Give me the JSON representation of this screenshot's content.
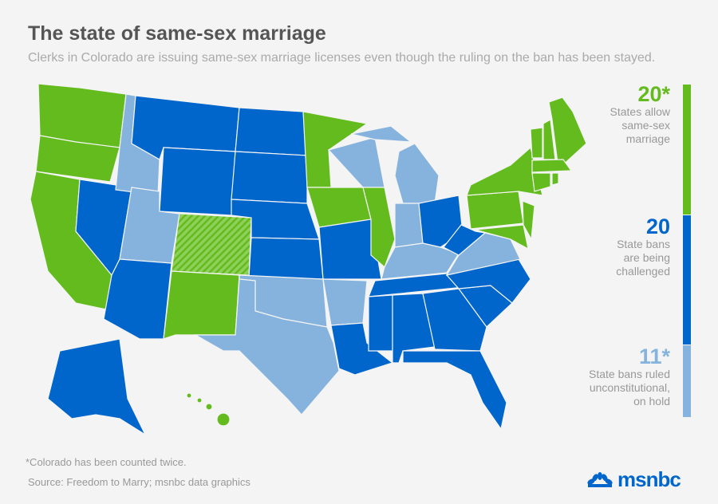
{
  "title": "The state of same-sex marriage",
  "subtitle": "Clerks in Colorado are issuing same-sex marriage licenses even though the ruling on the ban has been stayed.",
  "colors": {
    "allow": "#63bb1e",
    "challenged": "#0066cc",
    "on_hold": "#85b3de",
    "background": "#f4f4f4"
  },
  "legend": [
    {
      "count": "20*",
      "label_lines": [
        "States allow",
        "same-sex",
        "marriage"
      ],
      "color": "#63bb1e"
    },
    {
      "count": "20",
      "label_lines": [
        "State bans",
        "are being",
        "challenged"
      ],
      "color": "#0066cc"
    },
    {
      "count": "11*",
      "label_lines": [
        "State bans ruled",
        "unconstitutional,",
        "on hold"
      ],
      "color": "#85b3de"
    }
  ],
  "footnote": "*Colorado has been counted twice.",
  "source": "Source: Freedom to Marry; msnbc data graphics",
  "logo": "msnbc"
}
